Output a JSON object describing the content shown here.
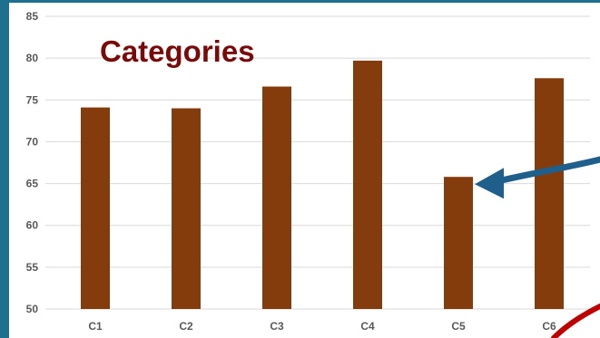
{
  "chart_data": {
    "type": "bar",
    "title": "Categories",
    "categories": [
      "C1",
      "C2",
      "C3",
      "C4",
      "C5",
      "C6"
    ],
    "values": [
      74.1,
      74.0,
      76.6,
      79.7,
      65.8,
      77.6
    ],
    "ylim": [
      50,
      85
    ],
    "yticks": [
      "50",
      "55",
      "60",
      "65",
      "70",
      "75",
      "80",
      "85"
    ],
    "grid": true,
    "bar_color": "#843c0c",
    "gridline_color": "#d9d9d9",
    "annotations": [
      {
        "type": "arrow",
        "points_to": "C5",
        "color": "#1f5f8b"
      },
      {
        "type": "circle-arc",
        "color": "#c00000"
      }
    ]
  }
}
